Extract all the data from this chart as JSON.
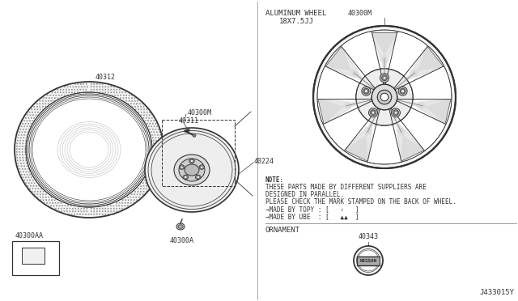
{
  "bg_color": "#ffffff",
  "line_color": "#333333",
  "part_numbers": {
    "tire": "40312",
    "wheel_assy_m": "40300M",
    "valve": "40311",
    "hub_cap": "40224",
    "wheel_base": "40300A",
    "label_bag": "40300AA",
    "ornament": "40343",
    "wheel_right_m": "40300M"
  },
  "note_text": [
    "NOTE:",
    "THESE PARTS MADE BY DIFFERENT SUPPLIERS ARE",
    "DESIGNED IN PARALLEL.",
    "PLEASE CHECK THE MARK STAMPED ON THE BACK OF WHEEL.",
    "→MADE BY TOPY : [   ‹   ]",
    "→MADE BY UBE  : [   ▲▲  ]"
  ],
  "aluminum_wheel_label": "ALUMINUM WHEEL",
  "wheel_size_label": "18X7.5JJ",
  "ornament_label": "ORNAMENT",
  "diagram_code": "J433015Y"
}
